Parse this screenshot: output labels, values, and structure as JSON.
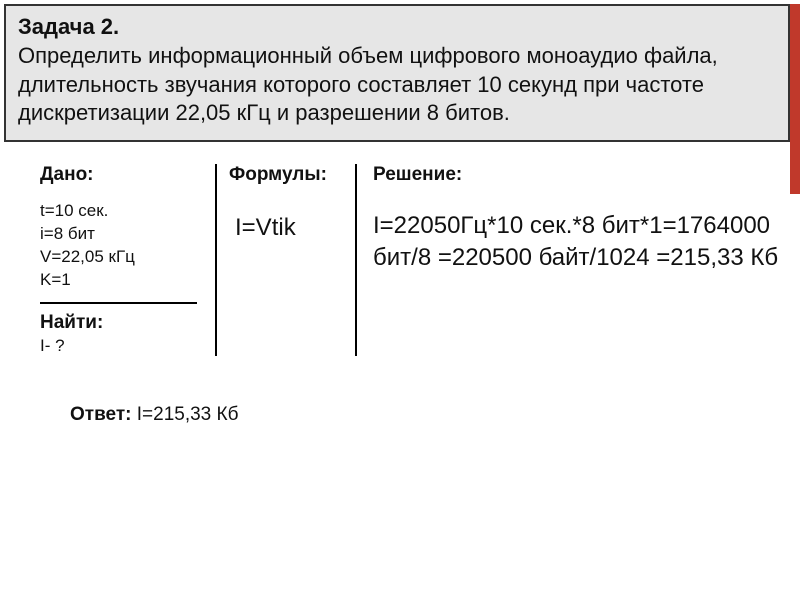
{
  "colors": {
    "accent": "#c0392b",
    "box_bg": "#e6e6e6",
    "box_border": "#333333",
    "text": "#111111",
    "divider": "#000000",
    "page_bg": "#ffffff"
  },
  "problem": {
    "title": "Задача 2.",
    "text": "Определить информационный объем цифрового моноаудио файла, длительность звучания которого составляет 10 секунд при частоте дискретизации 22,05 кГц и разрешении 8 битов."
  },
  "given": {
    "heading": "Дано:",
    "items": [
      "t=10 сек.",
      "i=8 бит",
      "V=22,05 кГц",
      "K=1"
    ],
    "find_heading": "Найти:",
    "find_value": "I- ?"
  },
  "formula": {
    "heading": "Формулы:",
    "body": "I=Vtik"
  },
  "solution": {
    "heading": "Решение:",
    "body": "I=22050Гц*10 сек.*8 бит*1=1764000 бит/8 =220500 байт/1024 =215,33 Кб"
  },
  "answer": {
    "label": "Ответ:",
    "value": "I=215,33 Кб"
  }
}
